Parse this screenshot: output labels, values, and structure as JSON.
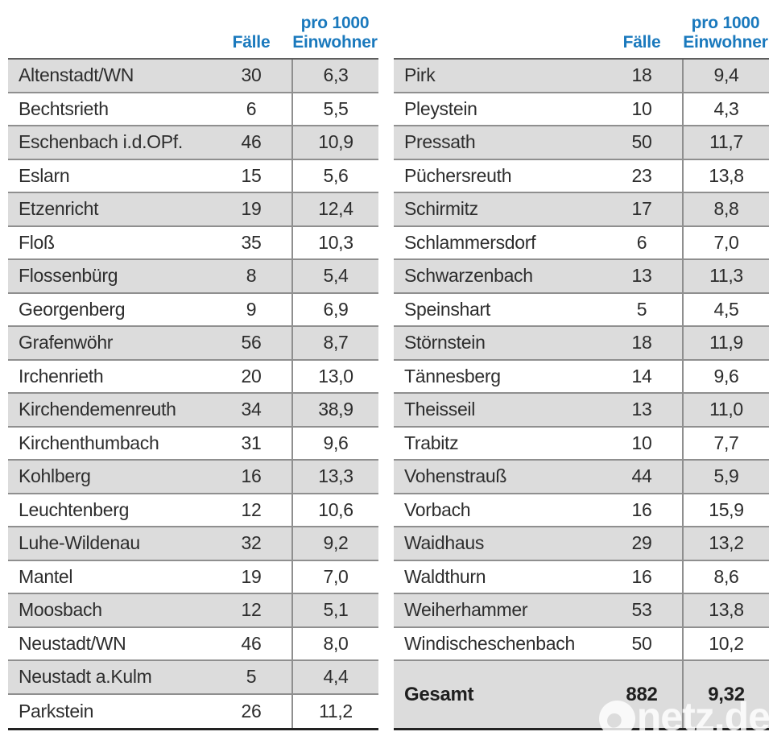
{
  "colors": {
    "header_blue": "#1a79bd",
    "row_shade_gray": "#dcdcdc",
    "row_white": "#ffffff",
    "separator_gray": "#8f8f8f",
    "table_bottom_dark": "#222222",
    "watermark_white": "#ffffff"
  },
  "headers": {
    "cases_label": "Fälle",
    "per1000_line1": "pro 1000",
    "per1000_line2": "Einwohner"
  },
  "watermark": {
    "brand": "Onetz.de",
    "brand_rest": "netz.de"
  },
  "chart_data": {
    "type": "table",
    "columns": [
      "Fälle",
      "pro 1000 Einwohner"
    ],
    "left_rows": [
      {
        "name": "Altenstadt/WN",
        "cases": "30",
        "rate": "6,3"
      },
      {
        "name": "Bechtsrieth",
        "cases": "6",
        "rate": "5,5"
      },
      {
        "name": "Eschenbach i.d.OPf.",
        "cases": "46",
        "rate": "10,9"
      },
      {
        "name": "Eslarn",
        "cases": "15",
        "rate": "5,6"
      },
      {
        "name": "Etzenricht",
        "cases": "19",
        "rate": "12,4"
      },
      {
        "name": "Floß",
        "cases": "35",
        "rate": "10,3"
      },
      {
        "name": "Flossenbürg",
        "cases": "8",
        "rate": "5,4"
      },
      {
        "name": "Georgenberg",
        "cases": "9",
        "rate": "6,9"
      },
      {
        "name": "Grafenwöhr",
        "cases": "56",
        "rate": "8,7"
      },
      {
        "name": "Irchenrieth",
        "cases": "20",
        "rate": "13,0"
      },
      {
        "name": "Kirchendemenreuth",
        "cases": "34",
        "rate": "38,9"
      },
      {
        "name": "Kirchenthumbach",
        "cases": "31",
        "rate": "9,6"
      },
      {
        "name": "Kohlberg",
        "cases": "16",
        "rate": "13,3"
      },
      {
        "name": "Leuchtenberg",
        "cases": "12",
        "rate": "10,6"
      },
      {
        "name": "Luhe-Wildenau",
        "cases": "32",
        "rate": "9,2"
      },
      {
        "name": "Mantel",
        "cases": "19",
        "rate": "7,0"
      },
      {
        "name": "Moosbach",
        "cases": "12",
        "rate": "5,1"
      },
      {
        "name": "Neustadt/WN",
        "cases": "46",
        "rate": "8,0"
      },
      {
        "name": "Neustadt a.Kulm",
        "cases": "5",
        "rate": "4,4"
      },
      {
        "name": "Parkstein",
        "cases": "26",
        "rate": "11,2"
      }
    ],
    "right_rows": [
      {
        "name": "Pirk",
        "cases": "18",
        "rate": "9,4"
      },
      {
        "name": "Pleystein",
        "cases": "10",
        "rate": "4,3"
      },
      {
        "name": "Pressath",
        "cases": "50",
        "rate": "11,7"
      },
      {
        "name": "Püchersreuth",
        "cases": "23",
        "rate": "13,8"
      },
      {
        "name": "Schirmitz",
        "cases": "17",
        "rate": "8,8"
      },
      {
        "name": "Schlammersdorf",
        "cases": "6",
        "rate": "7,0"
      },
      {
        "name": "Schwarzenbach",
        "cases": "13",
        "rate": "11,3"
      },
      {
        "name": "Speinshart",
        "cases": "5",
        "rate": "4,5"
      },
      {
        "name": "Störnstein",
        "cases": "18",
        "rate": "11,9"
      },
      {
        "name": "Tännesberg",
        "cases": "14",
        "rate": "9,6"
      },
      {
        "name": "Theisseil",
        "cases": "13",
        "rate": "11,0"
      },
      {
        "name": "Trabitz",
        "cases": "10",
        "rate": "7,7"
      },
      {
        "name": "Vohenstrauß",
        "cases": "44",
        "rate": "5,9"
      },
      {
        "name": "Vorbach",
        "cases": "16",
        "rate": "15,9"
      },
      {
        "name": "Waidhaus",
        "cases": "29",
        "rate": "13,2"
      },
      {
        "name": "Waldthurn",
        "cases": "16",
        "rate": "8,6"
      },
      {
        "name": "Weiherhammer",
        "cases": "53",
        "rate": "13,8"
      },
      {
        "name": "Windischeschenbach",
        "cases": "50",
        "rate": "10,2"
      }
    ],
    "total": {
      "label": "Gesamt",
      "cases": "882",
      "rate": "9,32"
    }
  }
}
